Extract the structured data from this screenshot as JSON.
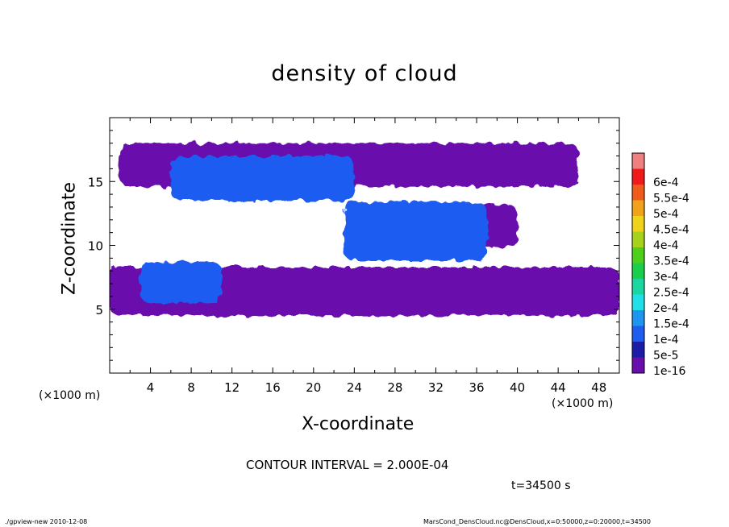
{
  "chart_data": {
    "type": "heatmap",
    "title": "density of cloud",
    "xlabel": "X-coordinate",
    "ylabel": "Z-coordinate",
    "x_unit": "(×1000 m)",
    "x_ticks": [
      4,
      8,
      12,
      16,
      20,
      24,
      28,
      32,
      36,
      40,
      44,
      48
    ],
    "y_ticks": [
      5,
      10,
      15
    ],
    "xlim": [
      0,
      50
    ],
    "ylim": [
      0,
      20
    ],
    "colorbar": {
      "labels": [
        "1e-16",
        "5e-5",
        "1e-4",
        "1.5e-4",
        "2e-4",
        "2.5e-4",
        "3e-4",
        "3.5e-4",
        "4e-4",
        "4.5e-4",
        "5e-4",
        "5.5e-4",
        "6e-4"
      ],
      "colors": [
        "#6a0dad",
        "#1c1ca8",
        "#1f5cf0",
        "#1e96f0",
        "#1ee0e6",
        "#1ad6a0",
        "#1ad04a",
        "#4ed01a",
        "#a6d21a",
        "#f0d21a",
        "#f0a21a",
        "#f05a1a",
        "#f01a1a",
        "#f08080"
      ]
    },
    "cloud_regions": [
      {
        "x": [
          0,
          50
        ],
        "z": [
          4.5,
          8.3
        ],
        "level": "1e-16"
      },
      {
        "x": [
          1,
          46
        ],
        "z": [
          14.6,
          18.0
        ],
        "level": "1e-16"
      },
      {
        "x": [
          23,
          40
        ],
        "z": [
          9.8,
          13.2
        ],
        "level": "1e-16"
      },
      {
        "x": [
          3,
          11
        ],
        "z": [
          5.5,
          8.7
        ],
        "level": "1e-4"
      },
      {
        "x": [
          6,
          24
        ],
        "z": [
          13.5,
          17.0
        ],
        "level": "1e-4"
      },
      {
        "x": [
          23,
          37
        ],
        "z": [
          8.8,
          13.4
        ],
        "level": "1e-4"
      }
    ]
  },
  "text": {
    "contour_interval": "CONTOUR INTERVAL = 2.000E-04",
    "time": "t=34500 s",
    "footer_left": "./gpview-new  2010-12-08",
    "footer_right": "MarsCond_DensCloud.nc@DensCloud,x=0:50000,z=0:20000,t=34500"
  }
}
